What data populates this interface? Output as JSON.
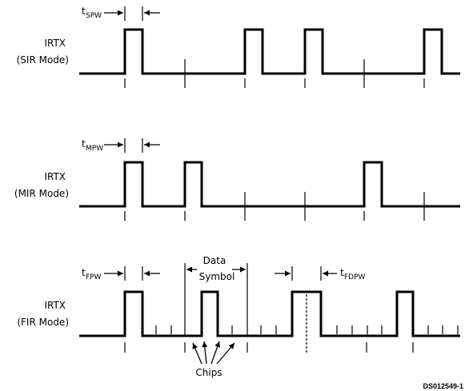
{
  "panels": {
    "sir": {
      "label_line1": "IRTX",
      "label_line2": "(SIR Mode)",
      "timing_main": "t",
      "timing_sub": "SPW"
    },
    "mir": {
      "label_line1": "IRTX",
      "label_line2": "(MIR Mode)",
      "timing_main": "t",
      "timing_sub": "MPW"
    },
    "fir": {
      "label_line1": "IRTX",
      "label_line2": "(FIR Mode)",
      "timing_main": "t",
      "timing_sub": "FPW",
      "timing2_main": "t",
      "timing2_sub": "FDPW",
      "data_symbol_line1": "Data",
      "data_symbol_line2": "Symbol",
      "chips_label": "Chips"
    }
  },
  "figure_ref": "DS012549-1"
}
